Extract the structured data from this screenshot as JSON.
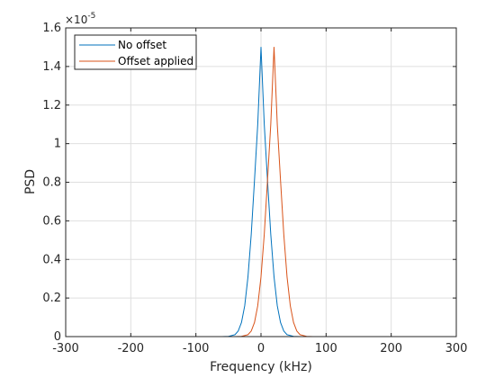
{
  "chart_data": {
    "type": "line",
    "title": "",
    "xlabel": "Frequency (kHz)",
    "ylabel": "PSD",
    "xlim": [
      -300,
      300
    ],
    "ylim": [
      0,
      1.6
    ],
    "y_exponent_base": "×10",
    "y_exponent_power": "-5",
    "x_ticks": [
      -300,
      -200,
      -100,
      0,
      100,
      200,
      300
    ],
    "y_ticks": [
      0,
      0.2,
      0.4,
      0.6,
      0.8,
      1,
      1.2,
      1.4,
      1.6
    ],
    "grid": true,
    "legend_position": "top-left",
    "series": [
      {
        "name": "No offset",
        "color": "#0072bd",
        "x": [
          -250,
          -60,
          -50,
          -40,
          -35,
          -30,
          -25,
          -20,
          -15,
          -10,
          -5,
          0,
          5,
          10,
          15,
          20,
          25,
          30,
          35,
          40,
          50,
          60,
          250
        ],
        "y": [
          0,
          0,
          0.001,
          0.01,
          0.029,
          0.073,
          0.16,
          0.31,
          0.53,
          0.81,
          1.1,
          1.5,
          1.1,
          0.81,
          0.53,
          0.31,
          0.16,
          0.073,
          0.029,
          0.01,
          0.001,
          0,
          0
        ]
      },
      {
        "name": "Offset applied",
        "color": "#d95319",
        "x": [
          -250,
          -40,
          -30,
          -20,
          -15,
          -10,
          -5,
          0,
          5,
          10,
          15,
          20,
          25,
          30,
          35,
          40,
          45,
          50,
          55,
          60,
          70,
          80,
          250
        ],
        "y": [
          0,
          0,
          0.001,
          0.01,
          0.029,
          0.073,
          0.16,
          0.31,
          0.53,
          0.81,
          1.1,
          1.5,
          1.1,
          0.81,
          0.53,
          0.31,
          0.16,
          0.073,
          0.029,
          0.01,
          0.001,
          0,
          0
        ]
      }
    ]
  }
}
